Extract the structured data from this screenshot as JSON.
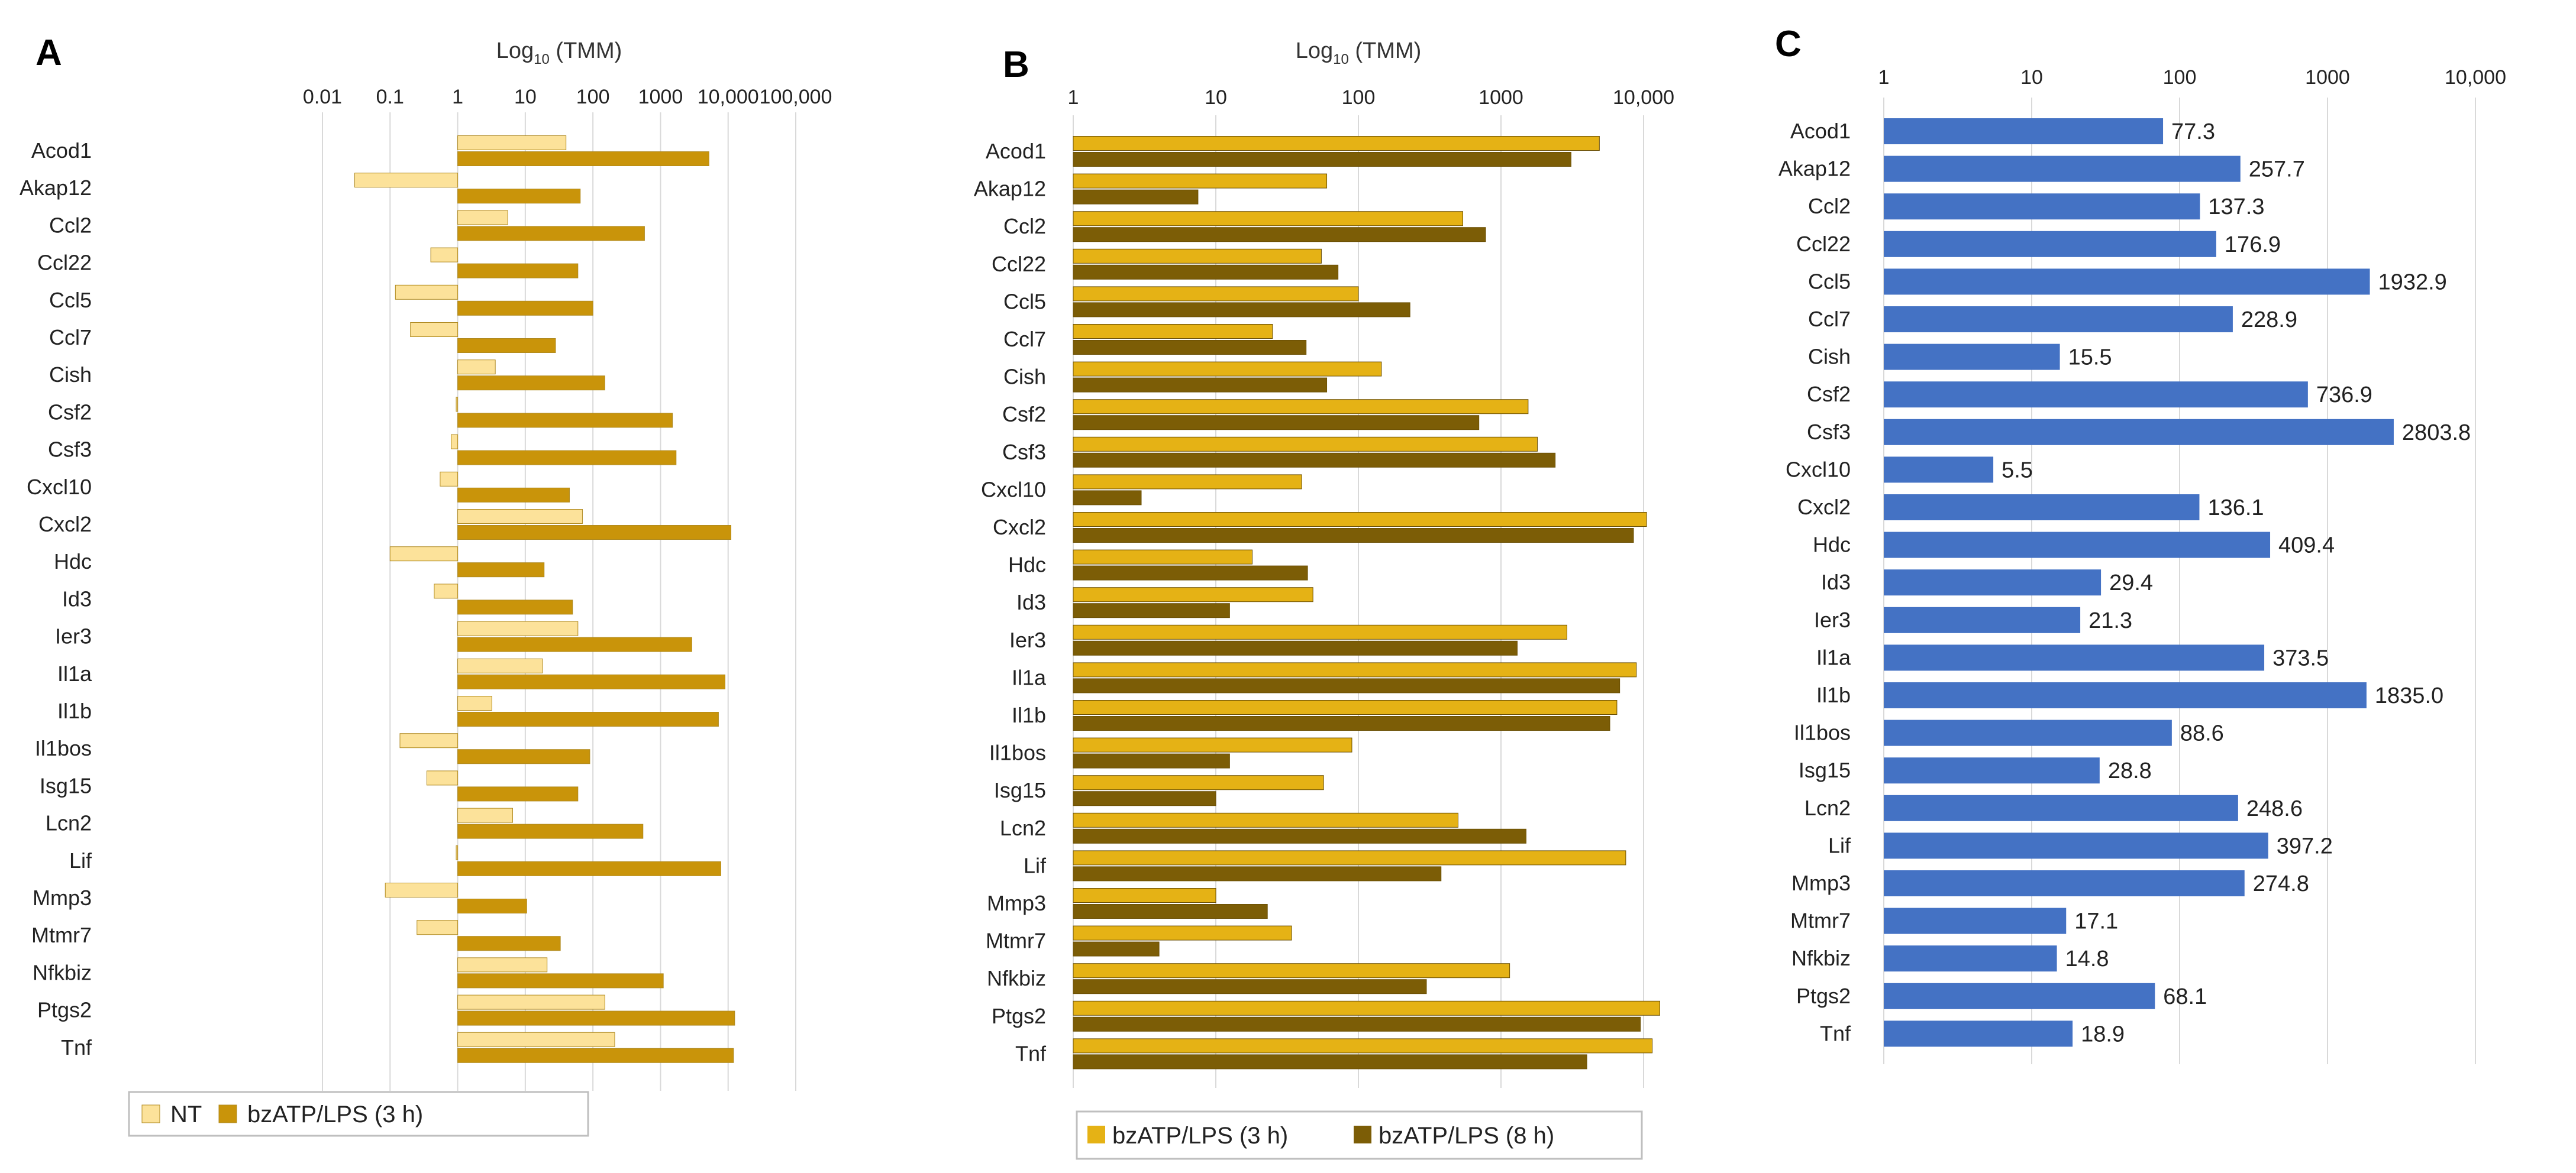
{
  "chart_data": [
    {
      "panel": "A",
      "type": "bar",
      "orientation": "horizontal",
      "xscale": "log",
      "xlabel": "Log",
      "xlabel_sub": "10",
      "xlabel_suffix": " (TMM)",
      "xticks": [
        "0.01",
        "0.1",
        "1",
        "10",
        "100",
        "1000",
        "10,000",
        "100,000"
      ],
      "xlim": [
        0.01,
        100000
      ],
      "bars_from": 1,
      "categories": [
        "Acod1",
        "Akap12",
        "Ccl2",
        "Ccl22",
        "Ccl5",
        "Ccl7",
        "Cish",
        "Csf2",
        "Csf3",
        "Cxcl10",
        "Cxcl2",
        "Hdc",
        "Id3",
        "Ier3",
        "Il1a",
        "Il1b",
        "Il1bos",
        "Isg15",
        "Lcn2",
        "Lif",
        "Mmp3",
        "Mtmr7",
        "Nfkbiz",
        "Ptgs2",
        "Tnf"
      ],
      "series": [
        {
          "name": "NT",
          "color": "#FCE29A",
          "values": [
            40,
            0.03,
            5.5,
            0.4,
            0.12,
            0.2,
            3.6,
            0.95,
            0.8,
            0.55,
            70,
            0.1,
            0.45,
            60,
            18,
            3.2,
            0.14,
            0.35,
            6.5,
            0.95,
            0.085,
            0.25,
            21,
            150,
            210
          ]
        },
        {
          "name": "bzATP/LPS   (3 h)",
          "color": "#C9940A",
          "values": [
            5200,
            65,
            580,
            60,
            100,
            28,
            150,
            1500,
            1700,
            45,
            11000,
            19,
            50,
            2900,
            9000,
            7200,
            90,
            60,
            550,
            7800,
            10.5,
            33,
            1100,
            12500,
            12000
          ]
        }
      ],
      "grid": true,
      "legend_position": "bottom"
    },
    {
      "panel": "B",
      "type": "bar",
      "orientation": "horizontal",
      "xscale": "log",
      "xlabel": "Log",
      "xlabel_sub": "10",
      "xlabel_suffix": " (TMM)",
      "xticks": [
        "1",
        "10",
        "100",
        "1000",
        "10,000"
      ],
      "xlim": [
        1,
        15000
      ],
      "categories": [
        "Acod1",
        "Akap12",
        "Ccl2",
        "Ccl22",
        "Ccl5",
        "Ccl7",
        "Cish",
        "Csf2",
        "Csf3",
        "Cxcl10",
        "Cxcl2",
        "Hdc",
        "Id3",
        "Ier3",
        "Il1a",
        "Il1b",
        "Il1bos",
        "Isg15",
        "Lcn2",
        "Lif",
        "Mmp3",
        "Mtmr7",
        "Nfkbiz",
        "Ptgs2",
        "Tnf"
      ],
      "series": [
        {
          "name": "bzATP/LPS   (3 h)",
          "color": "#E5B215",
          "values": [
            4900,
            60,
            540,
            55,
            100,
            25,
            145,
            1550,
            1800,
            40,
            10500,
            18,
            48,
            2900,
            8900,
            6500,
            90,
            57,
            500,
            7500,
            10,
            34,
            1150,
            13000,
            11500
          ]
        },
        {
          "name": "bzATP/LPS   (8 h)",
          "color": "#7C5D06",
          "values": [
            3100,
            7.5,
            780,
            72,
            230,
            43,
            60,
            700,
            2400,
            3,
            8500,
            44,
            12.5,
            1300,
            6800,
            5800,
            12.5,
            10,
            1500,
            380,
            23,
            4,
            300,
            9500,
            4000
          ]
        }
      ],
      "grid": true,
      "legend_position": "bottom"
    },
    {
      "panel": "C",
      "type": "bar",
      "orientation": "horizontal",
      "xscale": "log",
      "xticks": [
        "1",
        "10",
        "100",
        "1000",
        "10,000"
      ],
      "xlim": [
        1,
        15000
      ],
      "categories": [
        "Acod1",
        "Akap12",
        "Ccl2",
        "Ccl22",
        "Ccl5",
        "Ccl7",
        "Cish",
        "Csf2",
        "Csf3",
        "Cxcl10",
        "Cxcl2",
        "Hdc",
        "Id3",
        "Ier3",
        "Il1a",
        "Il1b",
        "Il1bos",
        "Isg15",
        "Lcn2",
        "Lif",
        "Mmp3",
        "Mtmr7",
        "Nfkbiz",
        "Ptgs2",
        "Tnf"
      ],
      "series": [
        {
          "color": "#4472C4",
          "values": [
            77.3,
            257.7,
            137.3,
            176.9,
            1932.9,
            228.9,
            15.5,
            736.9,
            2803.8,
            5.5,
            136.1,
            409.4,
            29.4,
            21.3,
            373.5,
            1835.0,
            88.6,
            28.8,
            248.6,
            397.2,
            274.8,
            17.1,
            14.8,
            68.1,
            18.9
          ]
        }
      ],
      "data_labels": [
        "77.3",
        "257.7",
        "137.3",
        "176.9",
        "1932.9",
        "228.9",
        "15.5",
        "736.9",
        "2803.8",
        "5.5",
        "136.1",
        "409.4",
        "29.4",
        "21.3",
        "373.5",
        "1835.0",
        "88.6",
        "28.8",
        "248.6",
        "397.2",
        "274.8",
        "17.1",
        "14.8",
        "68.1",
        "18.9"
      ],
      "grid": true
    }
  ]
}
